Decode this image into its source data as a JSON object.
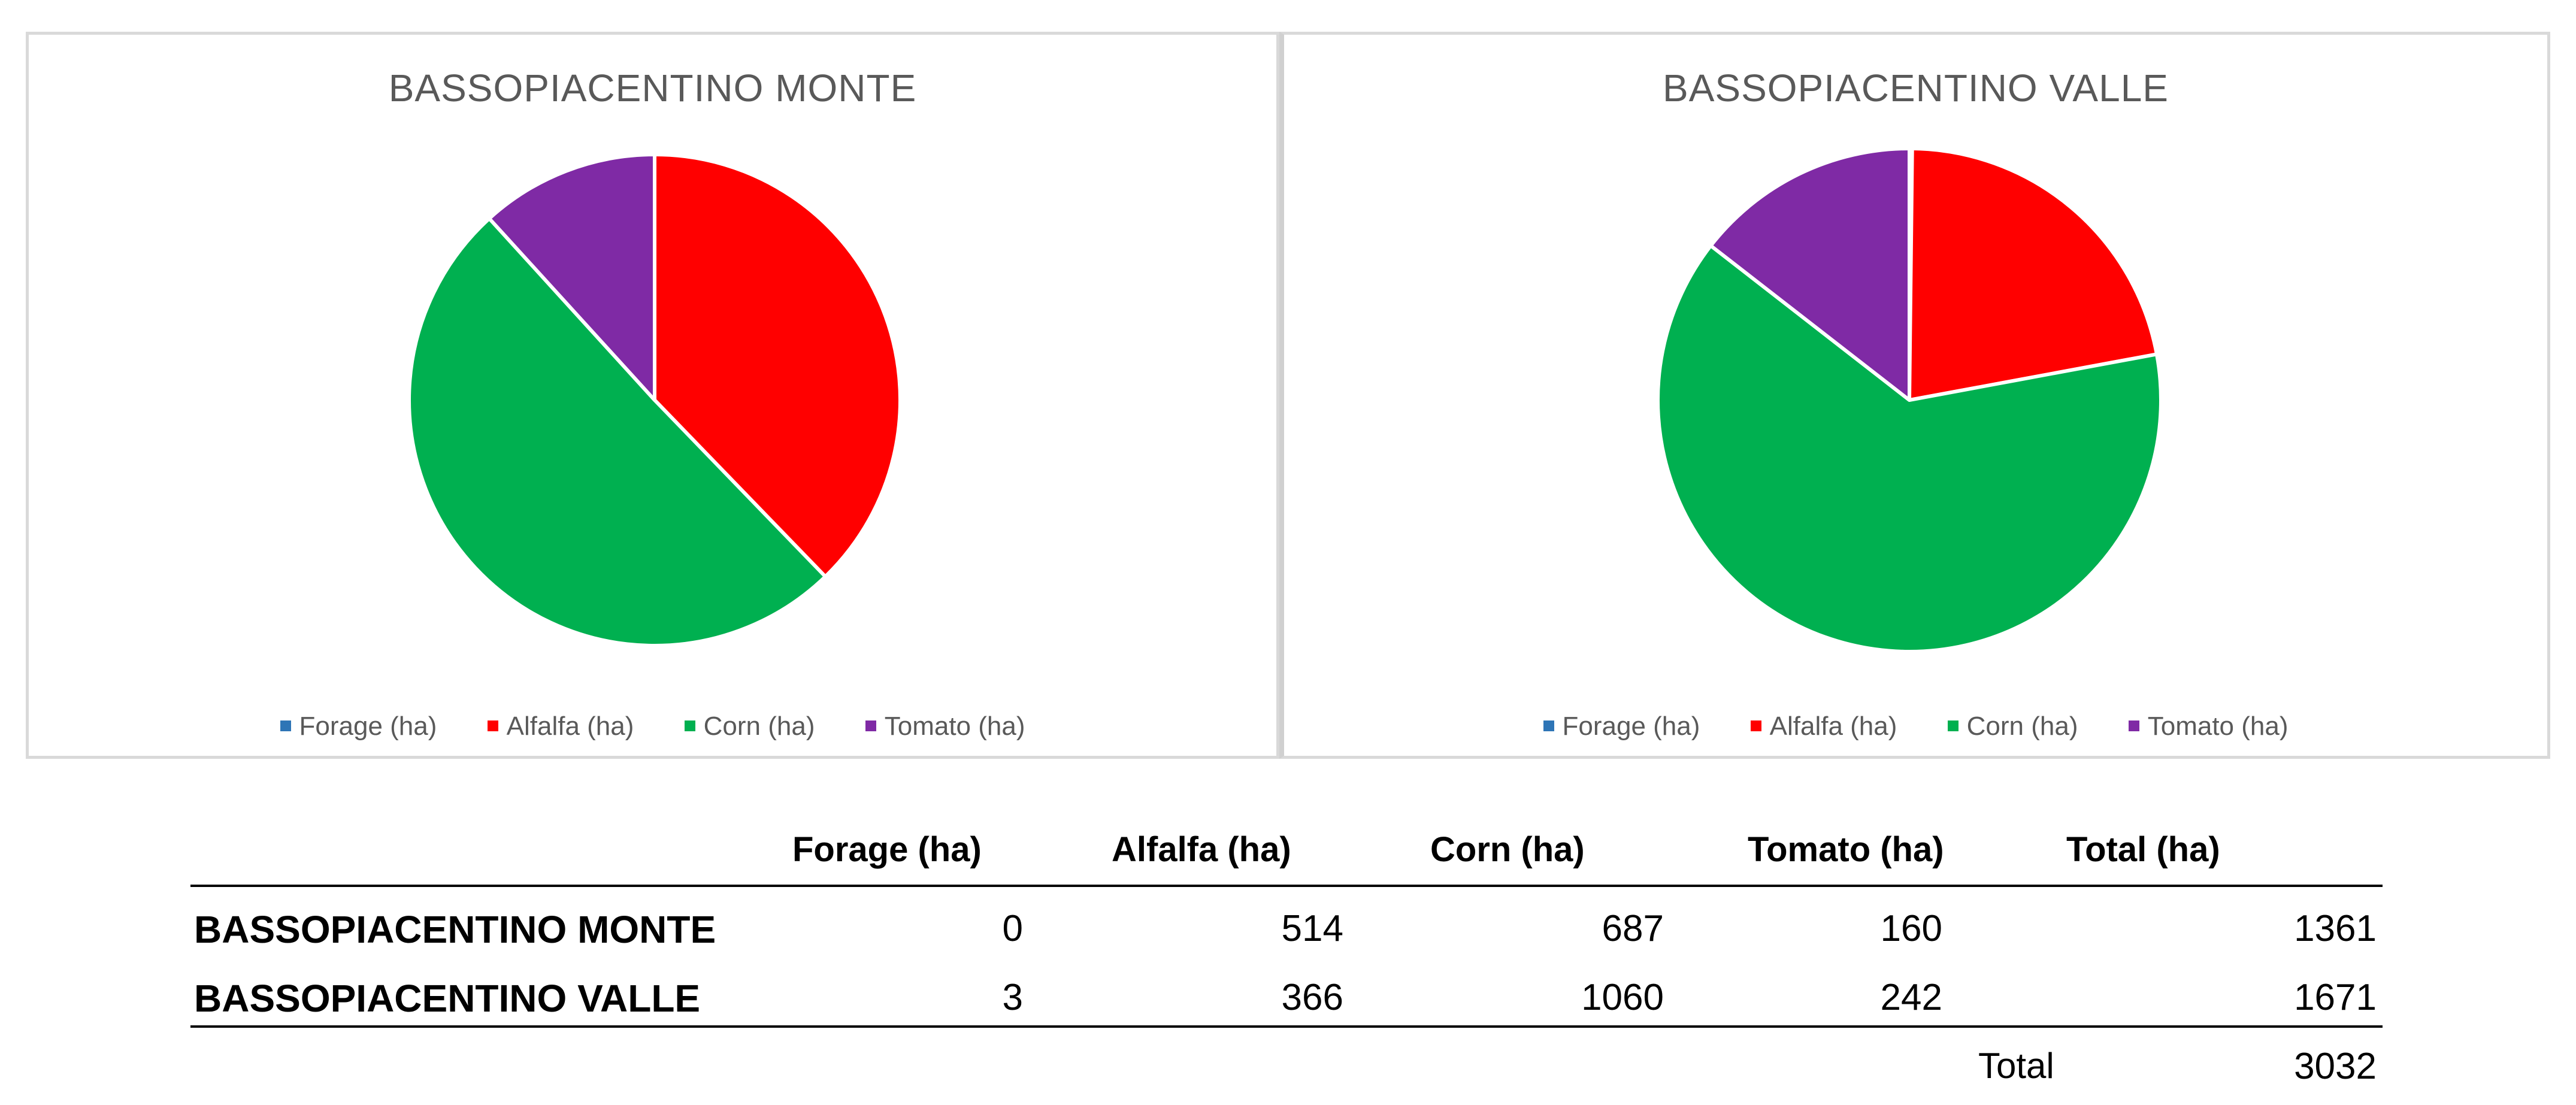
{
  "colors": {
    "forage": "#2E75B6",
    "alfalfa": "#FF0000",
    "corn": "#00B050",
    "tomato": "#7F2AA5"
  },
  "chart_data": [
    {
      "type": "pie",
      "title": "BASSOPIACENTINO MONTE",
      "categories": [
        "Forage (ha)",
        "Alfalfa (ha)",
        "Corn (ha)",
        "Tomato (ha)"
      ],
      "values": [
        0,
        514,
        687,
        160
      ],
      "legend": "bottom"
    },
    {
      "type": "pie",
      "title": "BASSOPIACENTINO VALLE",
      "categories": [
        "Forage (ha)",
        "Alfalfa (ha)",
        "Corn (ha)",
        "Tomato (ha)"
      ],
      "values": [
        3,
        366,
        1060,
        242
      ],
      "legend": "bottom"
    }
  ],
  "table": {
    "headers": [
      "",
      "Forage (ha)",
      "Alfalfa (ha)",
      "Corn (ha)",
      "Tomato (ha)",
      "Total (ha)"
    ],
    "rows": [
      {
        "label": "BASSOPIACENTINO MONTE",
        "forage": "0",
        "alfalfa": "514",
        "corn": "687",
        "tomato": "160",
        "total": "1361"
      },
      {
        "label": "BASSOPIACENTINO VALLE",
        "forage": "3",
        "alfalfa": "366",
        "corn": "1060",
        "tomato": "242",
        "total": "1671"
      }
    ],
    "total_label": "Total",
    "total_value": "3032"
  }
}
